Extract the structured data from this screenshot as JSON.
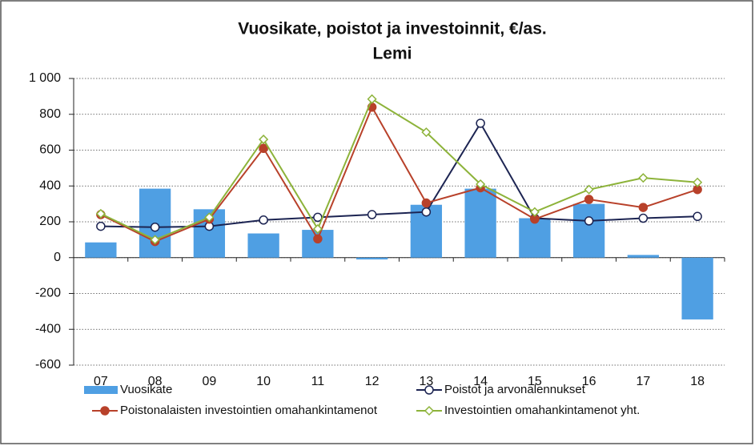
{
  "chart_data": {
    "type": "combo",
    "title": "Vuosikate, poistot ja investoinnit, €/as.",
    "subtitle": "Lemi",
    "categories": [
      "07",
      "08",
      "09",
      "10",
      "11",
      "12",
      "13",
      "14",
      "15",
      "16",
      "17",
      "18"
    ],
    "ylim": [
      -600,
      1000
    ],
    "yticks": [
      -600,
      -400,
      -200,
      0,
      200,
      400,
      600,
      800,
      {
        "value": 1000,
        "label": "1 000"
      }
    ],
    "grid": true,
    "legend": "bottom",
    "series": [
      {
        "name": "Vuosikate",
        "type": "bar",
        "color": "#4f9fe3",
        "values": [
          85,
          385,
          270,
          135,
          155,
          -10,
          295,
          385,
          220,
          300,
          15,
          -345
        ]
      },
      {
        "name": "Poistot ja arvonalennukset",
        "type": "line",
        "marker": "circle-open",
        "color": "#1c2452",
        "values": [
          175,
          170,
          175,
          210,
          225,
          240,
          255,
          750,
          220,
          205,
          220,
          230
        ]
      },
      {
        "name": "Poistonalaisten investointien omahankintamenot",
        "type": "line",
        "marker": "circle",
        "color": "#b8412a",
        "values": [
          240,
          90,
          215,
          610,
          105,
          840,
          305,
          390,
          215,
          325,
          280,
          380
        ]
      },
      {
        "name": "Investointien omahankintamenot yht.",
        "type": "line",
        "marker": "diamond-open",
        "color": "#8db33a",
        "values": [
          245,
          100,
          225,
          660,
          160,
          885,
          700,
          410,
          255,
          380,
          445,
          420
        ]
      }
    ]
  }
}
